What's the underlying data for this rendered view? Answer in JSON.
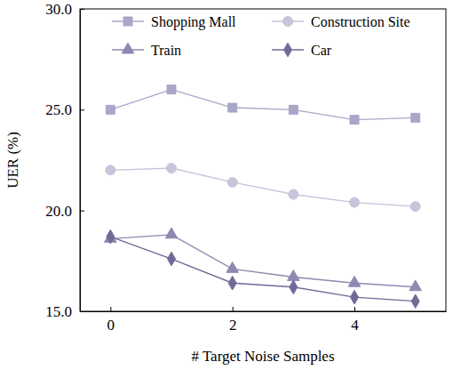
{
  "chart_data": {
    "type": "line",
    "x_label": "# Target Noise Samples",
    "y_label": "UER (%)",
    "x": [
      0,
      1,
      2,
      3,
      4,
      5
    ],
    "series": [
      {
        "name": "Shopping Mall",
        "color": "#a9a7c8",
        "marker": "square",
        "values": [
          25.0,
          26.0,
          25.1,
          25.0,
          24.5,
          24.6
        ]
      },
      {
        "name": "Construction Site",
        "color": "#c6c5da",
        "marker": "circle",
        "values": [
          22.0,
          22.1,
          21.4,
          20.8,
          20.4,
          20.2
        ]
      },
      {
        "name": "Train",
        "color": "#8d89b0",
        "marker": "triangle",
        "values": [
          18.6,
          18.8,
          17.1,
          16.7,
          16.4,
          16.2
        ]
      },
      {
        "name": "Car",
        "color": "#6f6b98",
        "marker": "diamond",
        "values": [
          18.7,
          17.6,
          16.4,
          16.2,
          15.7,
          15.5
        ]
      }
    ],
    "xlim": [
      -0.5,
      5.5
    ],
    "xticks": [
      0,
      2,
      4
    ],
    "ylim": [
      15,
      30
    ],
    "yticks": [
      {
        "value": 15,
        "label": "15.0"
      },
      {
        "value": 20,
        "label": "20.0"
      },
      {
        "value": 25,
        "label": "25.0"
      },
      {
        "value": 30,
        "label": "30.0"
      }
    ],
    "grid": false,
    "legend": "top"
  }
}
